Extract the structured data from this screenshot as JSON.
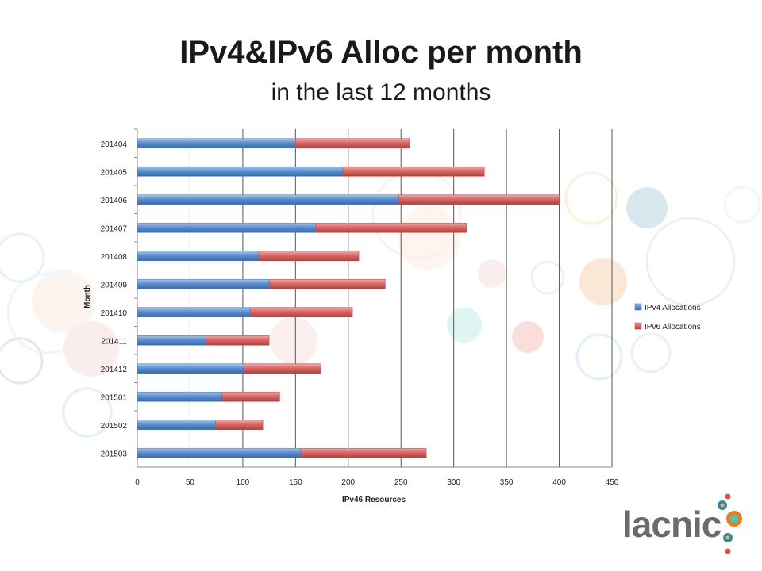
{
  "slide": {
    "title": "IPv4&IPv6 Alloc per month",
    "subtitle": "in the last 12 months",
    "logo_text": "lacnic"
  },
  "chart_data": {
    "type": "bar",
    "orientation": "horizontal",
    "stacked": true,
    "categories": [
      "201404",
      "201405",
      "201406",
      "201407",
      "201408",
      "201409",
      "201410",
      "201411",
      "201412",
      "201501",
      "201502",
      "201503"
    ],
    "series": [
      {
        "name": "IPv4 Allocations",
        "color": "#4f81bd",
        "values": [
          150,
          195,
          248,
          169,
          115,
          125,
          107,
          65,
          101,
          80,
          74,
          155
        ]
      },
      {
        "name": "IPv6 Allocations",
        "color": "#c0504d",
        "values": [
          108,
          134,
          152,
          143,
          95,
          110,
          97,
          60,
          73,
          55,
          45,
          119
        ]
      }
    ],
    "xlabel": "IPv46 Resources",
    "ylabel": "Month",
    "xlim": [
      0,
      450
    ],
    "xticks": [
      0,
      50,
      100,
      150,
      200,
      250,
      300,
      350,
      400,
      450
    ],
    "grid": true,
    "legend": "right"
  }
}
